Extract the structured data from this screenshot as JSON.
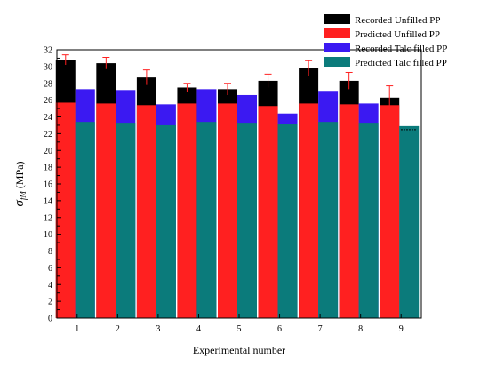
{
  "chart_data": {
    "type": "bar",
    "title": "",
    "xlabel": "Experimental number",
    "ylabel": "σ_fM (MPa)",
    "ylabel_parts": {
      "sigma": "σ",
      "subscript": "fM",
      "unit": "(MPa)"
    },
    "categories": [
      "1",
      "2",
      "3",
      "4",
      "5",
      "6",
      "7",
      "8",
      "9"
    ],
    "ylim": [
      0,
      32
    ],
    "yticks": [
      0,
      2,
      4,
      6,
      8,
      10,
      12,
      14,
      16,
      18,
      20,
      22,
      24,
      26,
      28,
      30,
      32
    ],
    "grid": false,
    "legend_position": "top-right",
    "series": [
      {
        "name": "Recorded Unfilled PP",
        "color": "#000000",
        "values": [
          30.8,
          30.4,
          28.7,
          27.5,
          27.3,
          28.3,
          29.8,
          28.3,
          26.3
        ],
        "errors": [
          0.6,
          0.7,
          0.9,
          0.5,
          0.7,
          0.8,
          0.9,
          1.0,
          1.4
        ]
      },
      {
        "name": "Predicted Unfilled PP",
        "color": "#ff2020",
        "values": [
          25.7,
          25.6,
          25.4,
          25.6,
          25.6,
          25.3,
          25.6,
          25.5,
          25.4
        ]
      },
      {
        "name": "Recorded Talc filled PP",
        "color": "#3b19f2",
        "values": [
          27.3,
          27.2,
          25.5,
          27.3,
          26.6,
          24.4,
          27.1,
          25.6,
          null
        ]
      },
      {
        "name": "Predicted Talc filled PP",
        "color": "#0b7b7b",
        "values": [
          23.4,
          23.3,
          23.0,
          23.4,
          23.3,
          23.1,
          23.4,
          23.3,
          22.9
        ]
      }
    ]
  }
}
